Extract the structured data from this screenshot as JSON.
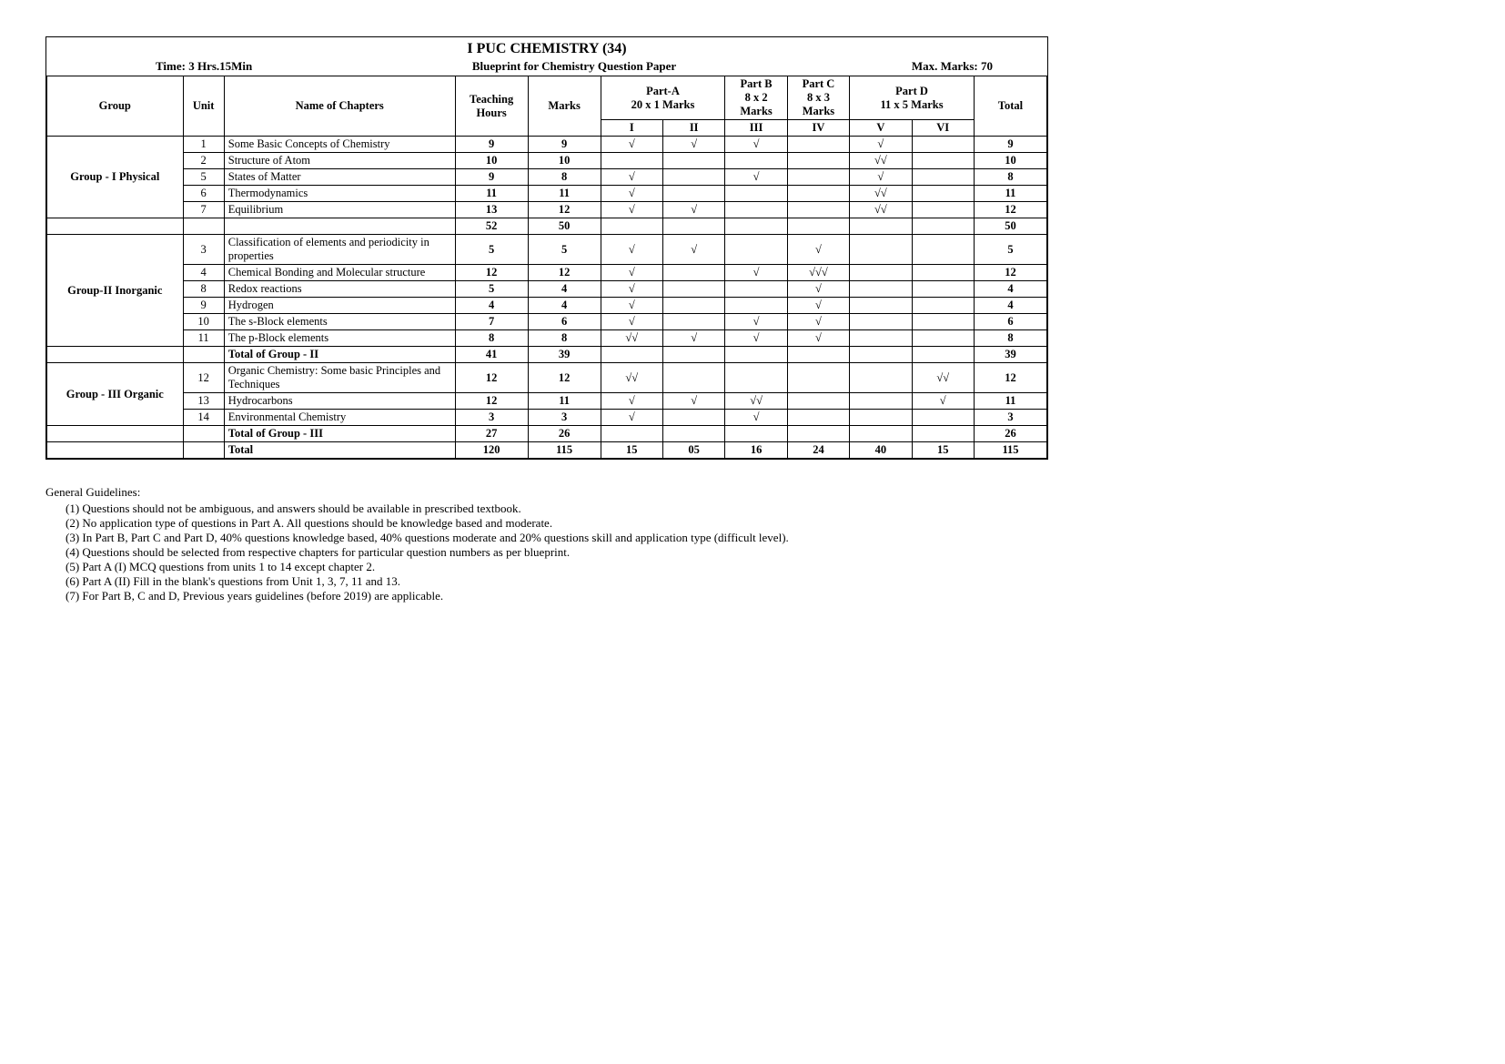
{
  "title": "I PUC CHEMISTRY (34)",
  "meta": {
    "time": "Time: 3 Hrs.15Min",
    "subtitle": "Blueprint for Chemistry Question Paper",
    "maxmarks": "Max. Marks: 70"
  },
  "headers": {
    "group": "Group",
    "unit": "Unit",
    "chapters": "Name of Chapters",
    "teaching": "Teaching Hours",
    "marks": "Marks",
    "partA": "Part-A",
    "partA_sub": "20 x 1 Marks",
    "partB": "Part B",
    "partB_sub": "8 x 2 Marks",
    "partC": "Part C",
    "partC_sub": "8 x 3 Marks",
    "partD": "Part D",
    "partD_sub": "11 x 5 Marks",
    "total": "Total",
    "roman": [
      "I",
      "II",
      "III",
      "IV",
      "V",
      "VI"
    ]
  },
  "groups": [
    {
      "name": "Group - I Physical",
      "rows": [
        {
          "unit": "1",
          "chapter": "Some Basic Concepts of Chemistry",
          "th": "9",
          "marks": "9",
          "i": "√",
          "ii": "√",
          "iii": "√",
          "iv": "",
          "v": "√",
          "vi": "",
          "total": "9"
        },
        {
          "unit": "2",
          "chapter": "Structure of Atom",
          "th": "10",
          "marks": "10",
          "i": "",
          "ii": "",
          "iii": "",
          "iv": "",
          "v": "√√",
          "vi": "",
          "total": "10"
        },
        {
          "unit": "5",
          "chapter": "States of Matter",
          "th": "9",
          "marks": "8",
          "i": "√",
          "ii": "",
          "iii": "√",
          "iv": "",
          "v": "√",
          "vi": "",
          "total": "8"
        },
        {
          "unit": "6",
          "chapter": "Thermodynamics",
          "th": "11",
          "marks": "11",
          "i": "√",
          "ii": "",
          "iii": "",
          "iv": "",
          "v": "√√",
          "vi": "",
          "total": "11"
        },
        {
          "unit": "7",
          "chapter": "Equilibrium",
          "th": "13",
          "marks": "12",
          "i": "√",
          "ii": "√",
          "iii": "",
          "iv": "",
          "v": "√√",
          "vi": "",
          "total": "12"
        }
      ],
      "subtotal": {
        "th": "52",
        "marks": "50",
        "total": "50"
      }
    },
    {
      "name": "Group-II Inorganic",
      "rows": [
        {
          "unit": "3",
          "chapter": "Classification of elements and periodicity in properties",
          "th": "5",
          "marks": "5",
          "i": "√",
          "ii": "√",
          "iii": "",
          "iv": "√",
          "v": "",
          "vi": "",
          "total": "5"
        },
        {
          "unit": "4",
          "chapter": "Chemical Bonding and Molecular structure",
          "th": "12",
          "marks": "12",
          "i": "√",
          "ii": "",
          "iii": "√",
          "iv": "√√√",
          "v": "",
          "vi": "",
          "total": "12"
        },
        {
          "unit": "8",
          "chapter": "Redox reactions",
          "th": "5",
          "marks": "4",
          "i": "√",
          "ii": "",
          "iii": "",
          "iv": "√",
          "v": "",
          "vi": "",
          "total": "4"
        },
        {
          "unit": "9",
          "chapter": "Hydrogen",
          "th": "4",
          "marks": "4",
          "i": "√",
          "ii": "",
          "iii": "",
          "iv": "√",
          "v": "",
          "vi": "",
          "total": "4"
        },
        {
          "unit": "10",
          "chapter": "The s-Block elements",
          "th": "7",
          "marks": "6",
          "i": "√",
          "ii": "",
          "iii": "√",
          "iv": "√",
          "v": "",
          "vi": "",
          "total": "6"
        },
        {
          "unit": "11",
          "chapter": "The p-Block elements",
          "th": "8",
          "marks": "8",
          "i": "√√",
          "ii": "√",
          "iii": "√",
          "iv": "√",
          "v": "",
          "vi": "",
          "total": "8"
        }
      ],
      "subtotal_label": "Total of Group - II",
      "subtotal": {
        "th": "41",
        "marks": "39",
        "total": "39"
      }
    },
    {
      "name": "Group - III Organic",
      "rows": [
        {
          "unit": "12",
          "chapter": "Organic Chemistry: Some basic Principles and Techniques",
          "th": "12",
          "marks": "12",
          "i": "√√",
          "ii": "",
          "iii": "",
          "iv": "",
          "v": "",
          "vi": "√√",
          "total": "12"
        },
        {
          "unit": "13",
          "chapter": "Hydrocarbons",
          "th": "12",
          "marks": "11",
          "i": "√",
          "ii": "√",
          "iii": "√√",
          "iv": "",
          "v": "",
          "vi": "√",
          "total": "11"
        },
        {
          "unit": "14",
          "chapter": "Environmental Chemistry",
          "th": "3",
          "marks": "3",
          "i": "√",
          "ii": "",
          "iii": "√",
          "iv": "",
          "v": "",
          "vi": "",
          "total": "3"
        }
      ],
      "subtotal_label": "Total of Group - III",
      "subtotal": {
        "th": "27",
        "marks": "26",
        "total": "26"
      }
    }
  ],
  "grand_total": {
    "label": "Total",
    "th": "120",
    "marks": "115",
    "i": "15",
    "ii": "05",
    "iii": "16",
    "iv": "24",
    "v": "40",
    "vi": "15",
    "total": "115"
  },
  "guidelines": {
    "heading": "General Guidelines:",
    "items": [
      "(1)  Questions should not be ambiguous, and answers should be available in prescribed textbook.",
      "(2)  No application type of questions in Part A.  All questions should be knowledge based and moderate.",
      "(3)  In Part B, Part C and Part D, 40% questions knowledge based, 40% questions moderate and 20% questions skill and application type (difficult level).",
      "(4)  Questions should be selected from respective chapters for particular question numbers as per blueprint.",
      "(5)  Part A (I) MCQ questions from units 1 to 14 except chapter 2.",
      "(6)  Part A (II) Fill in the blank's questions from Unit 1, 3, 7, 11 and 13.",
      "(7)  For Part B, C and D, Previous years guidelines (before 2019) are applicable."
    ]
  }
}
